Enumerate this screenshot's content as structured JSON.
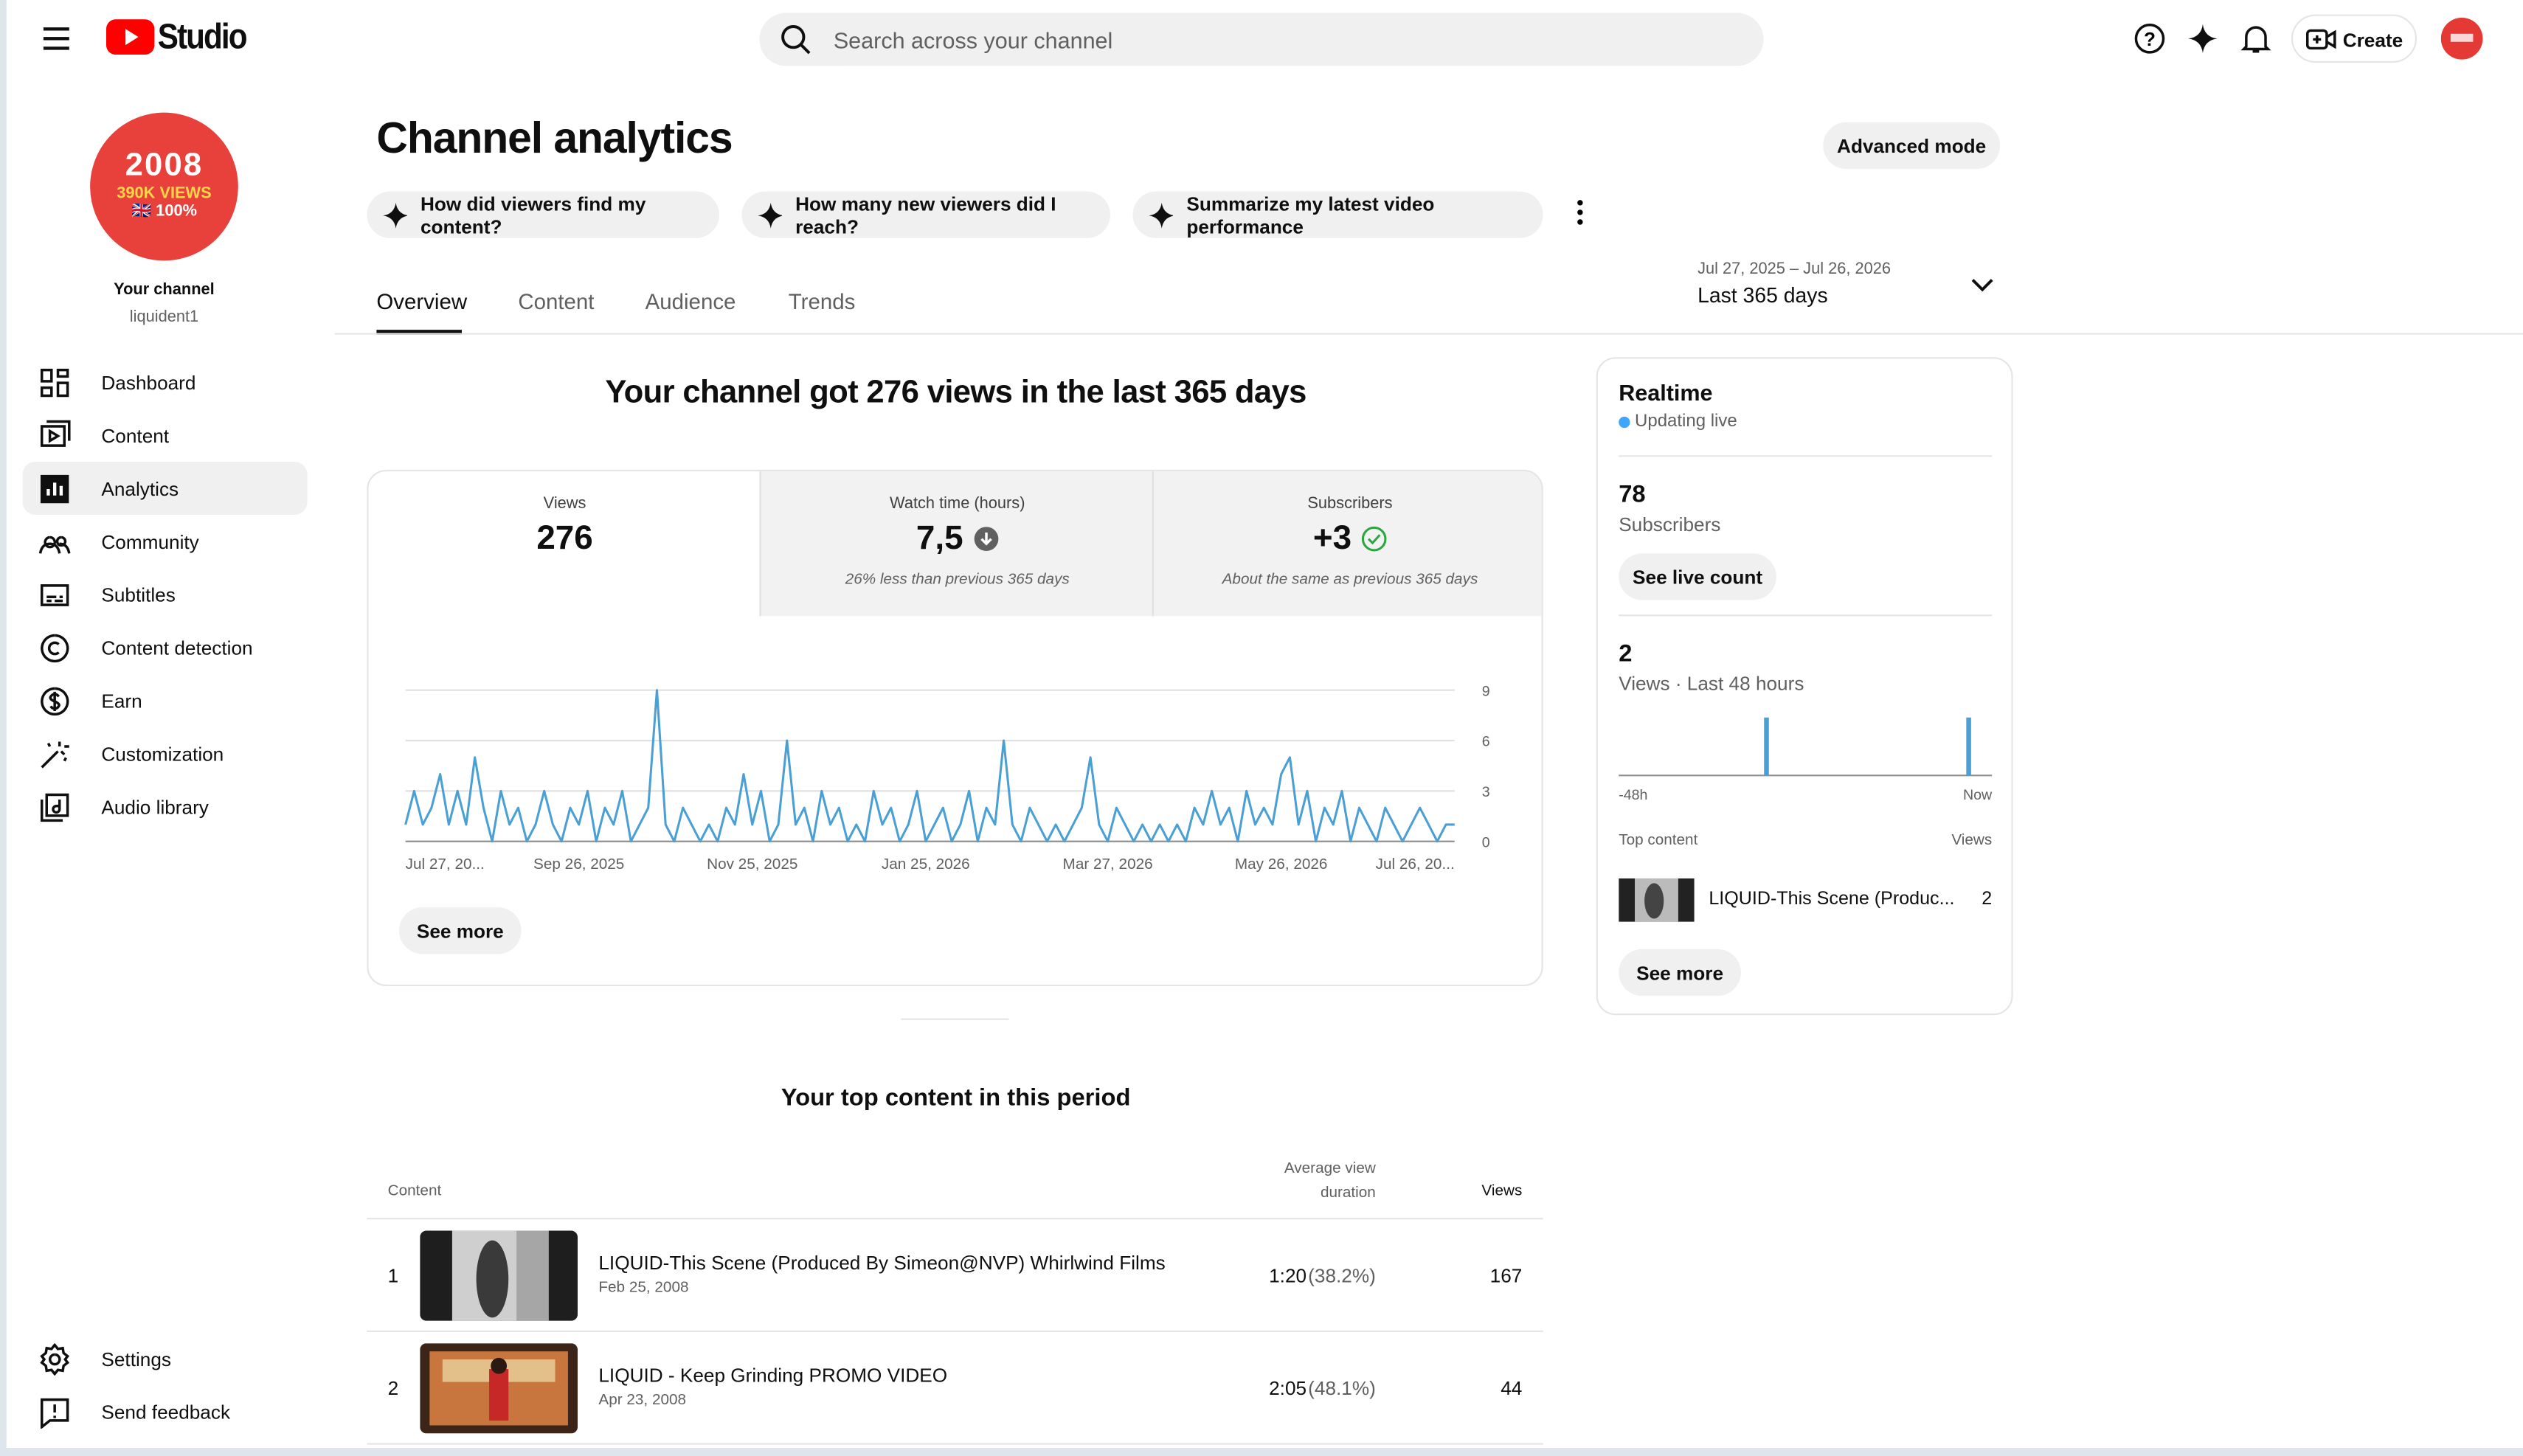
{
  "header": {
    "logo_text": "Studio",
    "search_placeholder": "Search across your channel",
    "create": "Create"
  },
  "sidebar": {
    "avatar": {
      "line1": "2008",
      "line2": "390K VIEWS",
      "line3": "🇬🇧 100%"
    },
    "channel_label": "Your channel",
    "channel_handle": "liquident1",
    "nav": [
      "Dashboard",
      "Content",
      "Analytics",
      "Community",
      "Subtitles",
      "Content detection",
      "Earn",
      "Customization",
      "Audio library"
    ],
    "bottom": [
      "Settings",
      "Send feedback"
    ]
  },
  "page": {
    "title": "Channel analytics",
    "advanced_mode": "Advanced mode",
    "suggestions": [
      "How did viewers find my content?",
      "How many new viewers did I reach?",
      "Summarize my latest video performance"
    ],
    "tabs": [
      "Overview",
      "Content",
      "Audience",
      "Trends"
    ],
    "date_range": {
      "dates": "Jul 27, 2025 – Jul 26, 2026",
      "label": "Last 365 days"
    }
  },
  "summary": {
    "headline": "Your channel got 276 views in the last 365 days",
    "stats": [
      {
        "label": "Views",
        "value": "276"
      },
      {
        "label": "Watch time (hours)",
        "value": "7,5",
        "note": "26% less than previous 365 days"
      },
      {
        "label": "Subscribers",
        "value": "+3",
        "note": "About the same as previous 365 days"
      }
    ],
    "see_more": "See more"
  },
  "chart_data": {
    "type": "line",
    "color": "#4a9fd4",
    "values": [
      1,
      3,
      1,
      2,
      4,
      1,
      3,
      1,
      5,
      2,
      0,
      3,
      1,
      2,
      0,
      1,
      3,
      1,
      0,
      2,
      1,
      3,
      0,
      2,
      1,
      3,
      0,
      1,
      2,
      9,
      1,
      0,
      2,
      1,
      0,
      1,
      0,
      2,
      1,
      4,
      1,
      3,
      0,
      1,
      6,
      1,
      2,
      0,
      3,
      1,
      2,
      0,
      1,
      0,
      3,
      1,
      2,
      0,
      1,
      3,
      0,
      1,
      2,
      0,
      1,
      3,
      0,
      2,
      1,
      6,
      1,
      0,
      2,
      1,
      0,
      1,
      0,
      1,
      2,
      5,
      1,
      0,
      2,
      1,
      0,
      1,
      0,
      1,
      0,
      1,
      0,
      2,
      1,
      3,
      1,
      2,
      0,
      3,
      1,
      2,
      1,
      4,
      5,
      1,
      3,
      0,
      2,
      1,
      3,
      0,
      2,
      1,
      0,
      2,
      1,
      0,
      1,
      2,
      1,
      0,
      1,
      1
    ],
    "xlim": [
      0,
      121
    ],
    "xticks": [
      {
        "value": 0,
        "label": "Jul 27, 20..."
      },
      {
        "value": 20,
        "label": "Sep 26, 2025"
      },
      {
        "value": 40,
        "label": "Nov 25, 2025"
      },
      {
        "value": 60,
        "label": "Jan 25, 2026"
      },
      {
        "value": 81,
        "label": "Mar 27, 2026"
      },
      {
        "value": 101,
        "label": "May 26, 2026"
      },
      {
        "value": 121,
        "label": "Jul 26, 20..."
      }
    ],
    "ylim": [
      0,
      9
    ],
    "yticks": [
      0,
      3,
      6,
      9
    ],
    "grid": true
  },
  "realtime": {
    "title": "Realtime",
    "status": "Updating live",
    "subscribers": "78",
    "subscribers_label": "Subscribers",
    "live_count": "See live count",
    "views": "2",
    "views_label": "Views · Last 48 hours",
    "chart": {
      "color": "#4a9fd4",
      "xlim": [
        -48,
        0
      ],
      "ylim": [
        0,
        1
      ],
      "xticks": [
        {
          "value": -48,
          "label": "-48h"
        },
        {
          "value": 0,
          "label": "Now"
        }
      ],
      "bars": [
        {
          "x": -29,
          "value": 1
        },
        {
          "x": -3,
          "value": 1
        }
      ]
    },
    "top_content_label": "Top content",
    "views_column": "Views",
    "top_item": {
      "title": "LIQUID-This Scene (Produc...",
      "views": "2"
    },
    "see_more": "See more"
  },
  "top_content": {
    "title": "Your top content in this period",
    "columns": [
      "Content",
      "Average view duration",
      "Views"
    ],
    "rows": [
      {
        "rank": "1",
        "title": "LIQUID-This Scene (Produced By Simeon@NVP) Whirlwind Films",
        "date": "Feb 25, 2008",
        "duration": "1:20",
        "percent": "(38.2%)",
        "views": "167"
      },
      {
        "rank": "2",
        "title": "LIQUID - Keep Grinding PROMO VIDEO",
        "date": "Apr 23, 2008",
        "duration": "2:05",
        "percent": "(48.1%)",
        "views": "44"
      }
    ]
  }
}
